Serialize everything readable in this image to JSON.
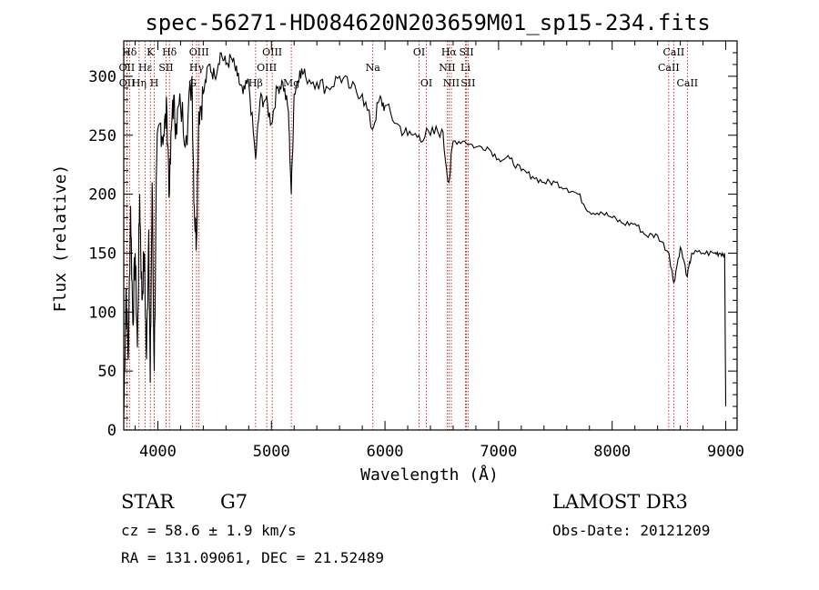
{
  "chart_data": {
    "type": "line",
    "title": "spec-56271-HD084620N203659M01_sp15-234.fits",
    "xlabel": "Wavelength (Å)",
    "ylabel": "Flux (relative)",
    "xlim": [
      3700,
      9100
    ],
    "ylim": [
      0,
      330
    ],
    "xticks": [
      4000,
      5000,
      6000,
      7000,
      8000,
      9000
    ],
    "yticks": [
      0,
      50,
      100,
      150,
      200,
      250,
      300
    ],
    "series": [
      {
        "name": "flux",
        "x": [
          3700,
          3720,
          3740,
          3760,
          3780,
          3800,
          3820,
          3840,
          3860,
          3880,
          3900,
          3920,
          3933,
          3950,
          3968,
          3990,
          4020,
          4050,
          4080,
          4102,
          4130,
          4160,
          4200,
          4250,
          4300,
          4320,
          4340,
          4360,
          4400,
          4450,
          4500,
          4550,
          4600,
          4650,
          4700,
          4750,
          4800,
          4861,
          4900,
          4950,
          5000,
          5050,
          5100,
          5150,
          5175,
          5200,
          5250,
          5300,
          5400,
          5500,
          5600,
          5700,
          5800,
          5890,
          5950,
          6000,
          6100,
          6200,
          6300,
          6400,
          6500,
          6563,
          6600,
          6700,
          6800,
          6900,
          7000,
          7100,
          7200,
          7300,
          7400,
          7500,
          7600,
          7700,
          7800,
          7900,
          8000,
          8100,
          8200,
          8300,
          8400,
          8500,
          8542,
          8600,
          8662,
          8700,
          8800,
          8900,
          8950,
          8990,
          9000
        ],
        "values": [
          10,
          120,
          60,
          190,
          90,
          150,
          70,
          200,
          110,
          150,
          60,
          170,
          40,
          210,
          50,
          230,
          260,
          250,
          270,
          200,
          280,
          260,
          275,
          250,
          300,
          190,
          160,
          270,
          285,
          310,
          300,
          320,
          310,
          315,
          300,
          285,
          295,
          230,
          280,
          280,
          260,
          290,
          295,
          270,
          200,
          285,
          305,
          300,
          295,
          290,
          300,
          290,
          285,
          255,
          280,
          275,
          260,
          250,
          250,
          250,
          255,
          210,
          245,
          245,
          240,
          240,
          230,
          230,
          220,
          215,
          210,
          210,
          205,
          200,
          185,
          185,
          180,
          175,
          175,
          165,
          165,
          150,
          125,
          155,
          130,
          150,
          150,
          150,
          150,
          150,
          20
        ]
      }
    ],
    "lines": [
      {
        "label": "Hδ",
        "wavelength": 3750,
        "row": 0
      },
      {
        "label": "OII",
        "wavelength": 3727,
        "row": 1
      },
      {
        "label": "OII",
        "wavelength": 3729,
        "row": 2
      },
      {
        "label": "Hε",
        "wavelength": 3889,
        "row": 1
      },
      {
        "label": "K",
        "wavelength": 3934,
        "row": 0
      },
      {
        "label": "Hη",
        "wavelength": 3835,
        "row": 2
      },
      {
        "label": "SII",
        "wavelength": 4072,
        "row": 1
      },
      {
        "label": "H",
        "wavelength": 3969,
        "row": 2
      },
      {
        "label": "Hδ",
        "wavelength": 4102,
        "row": 0
      },
      {
        "label": "OIII",
        "wavelength": 4363,
        "row": 0
      },
      {
        "label": "Hγ",
        "wavelength": 4341,
        "row": 1
      },
      {
        "label": "G",
        "wavelength": 4305,
        "row": 2
      },
      {
        "label": "Hβ",
        "wavelength": 4861,
        "row": 2
      },
      {
        "label": "OIII",
        "wavelength": 5007,
        "row": 0
      },
      {
        "label": "OIII",
        "wavelength": 4959,
        "row": 1
      },
      {
        "label": "Mg",
        "wavelength": 5175,
        "row": 2
      },
      {
        "label": "Na",
        "wavelength": 5893,
        "row": 1
      },
      {
        "label": "OI",
        "wavelength": 6300,
        "row": 0
      },
      {
        "label": "OI",
        "wavelength": 6364,
        "row": 2
      },
      {
        "label": "Hα",
        "wavelength": 6563,
        "row": 0
      },
      {
        "label": "NII",
        "wavelength": 6548,
        "row": 1
      },
      {
        "label": "NII",
        "wavelength": 6584,
        "row": 2
      },
      {
        "label": "SII",
        "wavelength": 6717,
        "row": 0
      },
      {
        "label": "Li",
        "wavelength": 6708,
        "row": 1
      },
      {
        "label": "SII",
        "wavelength": 6731,
        "row": 2
      },
      {
        "label": "CaII",
        "wavelength": 8542,
        "row": 0
      },
      {
        "label": "CaII",
        "wavelength": 8498,
        "row": 1
      },
      {
        "label": "CaII",
        "wavelength": 8662,
        "row": 2
      }
    ],
    "line_color": "#c00000",
    "spectrum_color": "#000000"
  },
  "info": {
    "object_class": "STAR",
    "subclass": "G7",
    "survey": "LAMOST DR3",
    "cz": "cz = 58.6 ± 1.9 km/s",
    "coords": "RA = 131.09061, DEC =  21.52489",
    "obs_date": "Obs-Date: 20121209"
  }
}
